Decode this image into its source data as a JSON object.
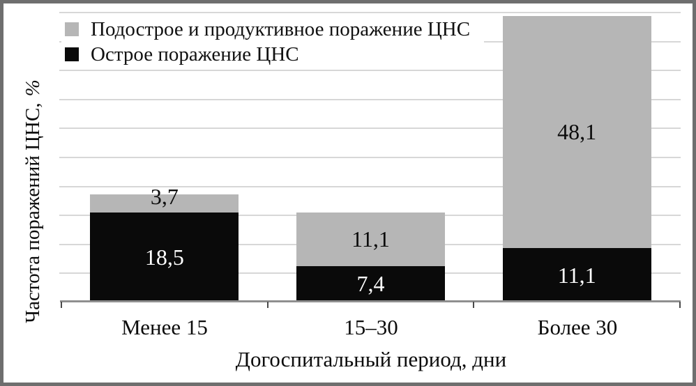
{
  "frame": {
    "border_color": "#6e6e6e"
  },
  "chart_data": {
    "type": "bar",
    "stacked": true,
    "categories": [
      "Менее 15",
      "15–30",
      "Более 30"
    ],
    "series": [
      {
        "name": "Острое поражение ЦНС",
        "color": "#0a0a0a",
        "label_color": "#ffffff",
        "values": [
          18.5,
          7.4,
          11.1
        ],
        "labels": [
          "18,5",
          "7,4",
          "11,1"
        ]
      },
      {
        "name": "Подострое и продуктивное поражение ЦНС",
        "color": "#b6b6b6",
        "label_color": "#0c0c0c",
        "values": [
          3.7,
          11.1,
          48.1
        ],
        "labels": [
          "3,7",
          "11,1",
          "48,1"
        ]
      }
    ],
    "xlabel": "Догоспитальный период, дни",
    "ylabel": "Частота поражений ЦНС,",
    "ylabel_unit": "%",
    "ylim": [
      0,
      60
    ],
    "y_tick_labels_visible": false,
    "gridlines": {
      "count": 10,
      "color": "#d7d7d7",
      "horizontal": true
    },
    "legend_position": "top-left"
  },
  "legend": {
    "items": [
      {
        "label": "Подострое и продуктивное поражение ЦНС",
        "color": "#b6b6b6"
      },
      {
        "label": "Острое поражение ЦНС",
        "color": "#0a0a0a"
      }
    ]
  },
  "axis": {
    "baseline_color": "#8f8f8f",
    "tick_color": "#4a4a4a"
  }
}
